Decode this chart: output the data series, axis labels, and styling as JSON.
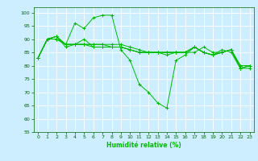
{
  "background_color": "#cceeff",
  "grid_color": "#ffffff",
  "line_color": "#00bb00",
  "xlabel": "Humidité relative (%)",
  "ylim": [
    55,
    102
  ],
  "xlim": [
    -0.5,
    23.5
  ],
  "yticks": [
    55,
    60,
    65,
    70,
    75,
    80,
    85,
    90,
    95,
    100
  ],
  "xticks": [
    0,
    1,
    2,
    3,
    4,
    5,
    6,
    7,
    8,
    9,
    10,
    11,
    12,
    13,
    14,
    15,
    16,
    17,
    18,
    19,
    20,
    21,
    22,
    23
  ],
  "series": [
    [
      83,
      90,
      90,
      88,
      88,
      90,
      87,
      87,
      87,
      87,
      86,
      85,
      85,
      85,
      85,
      85,
      85,
      85,
      87,
      85,
      85,
      86,
      80,
      80
    ],
    [
      83,
      90,
      90,
      88,
      96,
      94,
      98,
      99,
      99,
      86,
      82,
      73,
      70,
      66,
      64,
      82,
      84,
      87,
      85,
      84,
      86,
      85,
      79,
      80
    ],
    [
      83,
      90,
      91,
      87,
      88,
      88,
      87,
      87,
      87,
      87,
      86,
      85,
      85,
      85,
      84,
      85,
      85,
      87,
      85,
      84,
      85,
      86,
      79,
      80
    ],
    [
      83,
      90,
      91,
      88,
      88,
      88,
      88,
      88,
      88,
      88,
      87,
      86,
      85,
      85,
      85,
      85,
      85,
      87,
      85,
      84,
      85,
      86,
      80,
      80
    ],
    [
      83,
      90,
      91,
      88,
      88,
      88,
      88,
      88,
      87,
      87,
      86,
      85,
      85,
      85,
      85,
      85,
      85,
      87,
      85,
      84,
      85,
      86,
      79,
      79
    ]
  ]
}
